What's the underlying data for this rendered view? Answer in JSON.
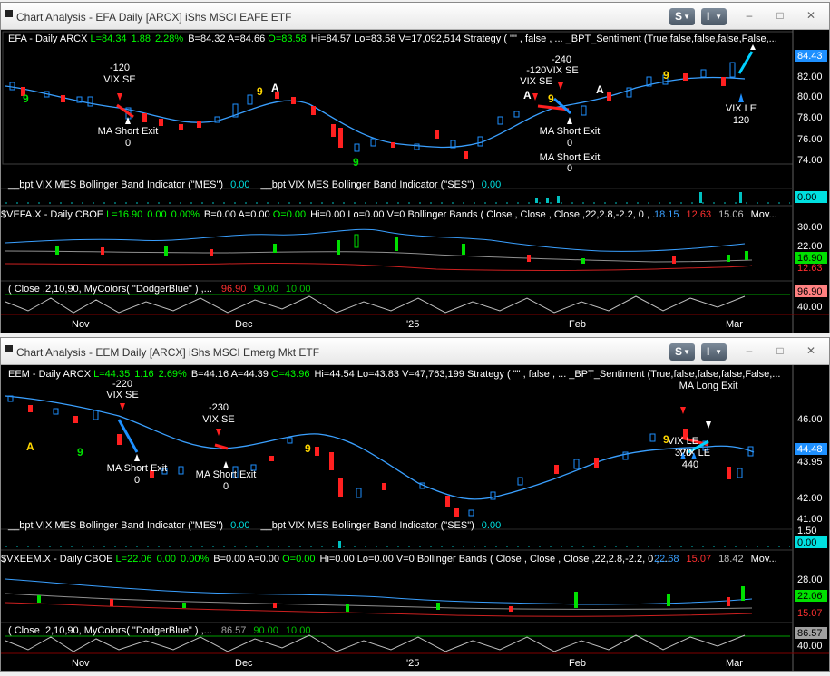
{
  "windows": [
    {
      "title": "Chart Analysis - EFA Daily [ARCX] iShs MSCI EAFE ETF",
      "style_button": "S",
      "indicator_button": "I",
      "price_header": {
        "prefix": "EFA - Daily  ARCX  ",
        "last": "L=84.34",
        "change": "1.88",
        "pct": "2.28%",
        "rest1": "B=84.32  A=84.66  ",
        "open": "O=83.58",
        "rest2": "Hi=84.57  Lo=83.58  V=17,092,514  Strategy ( \"\" , false , ...  _BPT_Sentiment (True,false,false,false,False,..."
      },
      "price_axis": [
        "82.00",
        "80.00",
        "78.00",
        "76.00",
        "74.00"
      ],
      "last_price_tag": "84.43",
      "sentiment_label": "__bpt VIX MES Bollinger Band Indicator (\"MES\")",
      "sentiment_val1": "0.00",
      "sentiment_label2": "__bpt VIX MES Bollinger Band Indicator (\"SES\")",
      "sentiment_val2": "0.00",
      "sentiment_tag": "0.00",
      "vix_header": {
        "prefix": "$VEFA.X - Daily  CBOE  ",
        "last": "L=16.90",
        "change": "0.00",
        "pct": "0.00%",
        "rest": "B=0.00  A=0.00  ",
        "open": "O=0.00",
        "rest2": "Hi=0.00  Lo=0.00  V=0  Bollinger Bands ( Close , Close , Close ,22,2.8,-2.2, 0 , ...",
        "bb_upper": "18.15",
        "bb_lower": "12.63",
        "bb_mid": "15.06",
        "more": "Mov..."
      },
      "vix_axis": [
        "30.00",
        "22.00"
      ],
      "vix_tags": [
        "16.90",
        "12.63"
      ],
      "osc_header": "( Close ,2,10,90, MyColors( \"DodgerBlue\" ) ,...",
      "osc_vals": [
        "96.90",
        "90.00",
        "10.00"
      ],
      "osc_axis": [
        "40.00"
      ],
      "osc_tag": "96.90",
      "annotations": [
        {
          "text": "-120",
          "cls": "w"
        },
        {
          "text": "VIX SE",
          "cls": "w"
        },
        {
          "text": "MA Short Exit",
          "cls": "w"
        },
        {
          "text": "0",
          "cls": "w"
        },
        {
          "text": "-240",
          "cls": "w"
        },
        {
          "text": "-120VIX SE",
          "cls": "w"
        },
        {
          "text": "VIX SE",
          "cls": "w"
        },
        {
          "text": "MA Short Exit",
          "cls": "w"
        },
        {
          "text": "0",
          "cls": "w"
        },
        {
          "text": "MA Short Exit",
          "cls": "w"
        },
        {
          "text": "0",
          "cls": "w"
        },
        {
          "text": "VIX LE",
          "cls": "w"
        },
        {
          "text": "120",
          "cls": "w"
        }
      ],
      "markers": [
        "9",
        "9",
        "A",
        "9",
        "A",
        "9",
        "A",
        "9"
      ]
    },
    {
      "title": "Chart Analysis - EEM Daily [ARCX] iShs MSCI Emerg Mkt ETF",
      "style_button": "S",
      "indicator_button": "I",
      "price_header": {
        "prefix": "EEM - Daily  ARCX  ",
        "last": "L=44.35",
        "change": "1.16",
        "pct": "2.69%",
        "rest1": "B=44.16  A=44.39  ",
        "open": "O=43.96",
        "rest2": "Hi=44.54  Lo=43.83  V=47,763,199  Strategy ( \"\" , false , ...  _BPT_Sentiment (True,false,false,false,False,..."
      },
      "price_axis": [
        "46.00",
        "43.95",
        "42.00",
        "41.00"
      ],
      "last_price_tag": "44.48",
      "sentiment_label": "__bpt VIX MES Bollinger Band Indicator (\"MES\")",
      "sentiment_val1": "0.00",
      "sentiment_label2": "__bpt VIX MES Bollinger Band Indicator (\"SES\")",
      "sentiment_val2": "0.00",
      "sentiment_axis": "1.50",
      "sentiment_tag": "0.00",
      "vix_header": {
        "prefix": "$VXEEM.X - Daily  CBOE  ",
        "last": "L=22.06",
        "change": "0.00",
        "pct": "0.00%",
        "rest": "B=0.00  A=0.00  ",
        "open": "O=0.00",
        "rest2": "Hi=0.00  Lo=0.00  V=0  Bollinger Bands ( Close , Close , Close ,22,2.8,-2.2, 0 , ...",
        "bb_upper": "22.68",
        "bb_lower": "15.07",
        "bb_mid": "18.42",
        "more": "Mov..."
      },
      "vix_axis": [
        "28.00"
      ],
      "vix_tags": [
        "22.06",
        "15.07"
      ],
      "osc_header": "( Close ,2,10,90, MyColors( \"DodgerBlue\" ) ,...",
      "osc_vals": [
        "86.57",
        "90.00",
        "10.00"
      ],
      "osc_axis": [
        "40.00"
      ],
      "osc_tag": "86.57",
      "annotations": [
        {
          "text": "-220",
          "cls": "w"
        },
        {
          "text": "VIX SE",
          "cls": "w"
        },
        {
          "text": "MA Short Exit",
          "cls": "w"
        },
        {
          "text": "0",
          "cls": "w"
        },
        {
          "text": "-230",
          "cls": "w"
        },
        {
          "text": "VIX SE",
          "cls": "w"
        },
        {
          "text": "MA Short Exit",
          "cls": "w"
        },
        {
          "text": "0",
          "cls": "w"
        },
        {
          "text": "MA Long Exit",
          "cls": "w"
        },
        {
          "text": "VIX LE",
          "cls": "w"
        },
        {
          "text": "VIX LE",
          "cls": "w"
        },
        {
          "text": "320",
          "cls": "w"
        },
        {
          "text": "440",
          "cls": "w"
        }
      ],
      "markers": [
        "A",
        "9",
        "9",
        "9"
      ]
    }
  ],
  "x_axis": [
    "Nov",
    "Dec",
    "'25",
    "Feb",
    "Mar"
  ],
  "colors": {
    "background": "#000000",
    "up": "#1e90ff",
    "down": "#ff2020",
    "ma": "#3aa0ff",
    "green": "#00e000",
    "yellow": "#ffd700",
    "cyan_axis": "#00e0e0"
  }
}
